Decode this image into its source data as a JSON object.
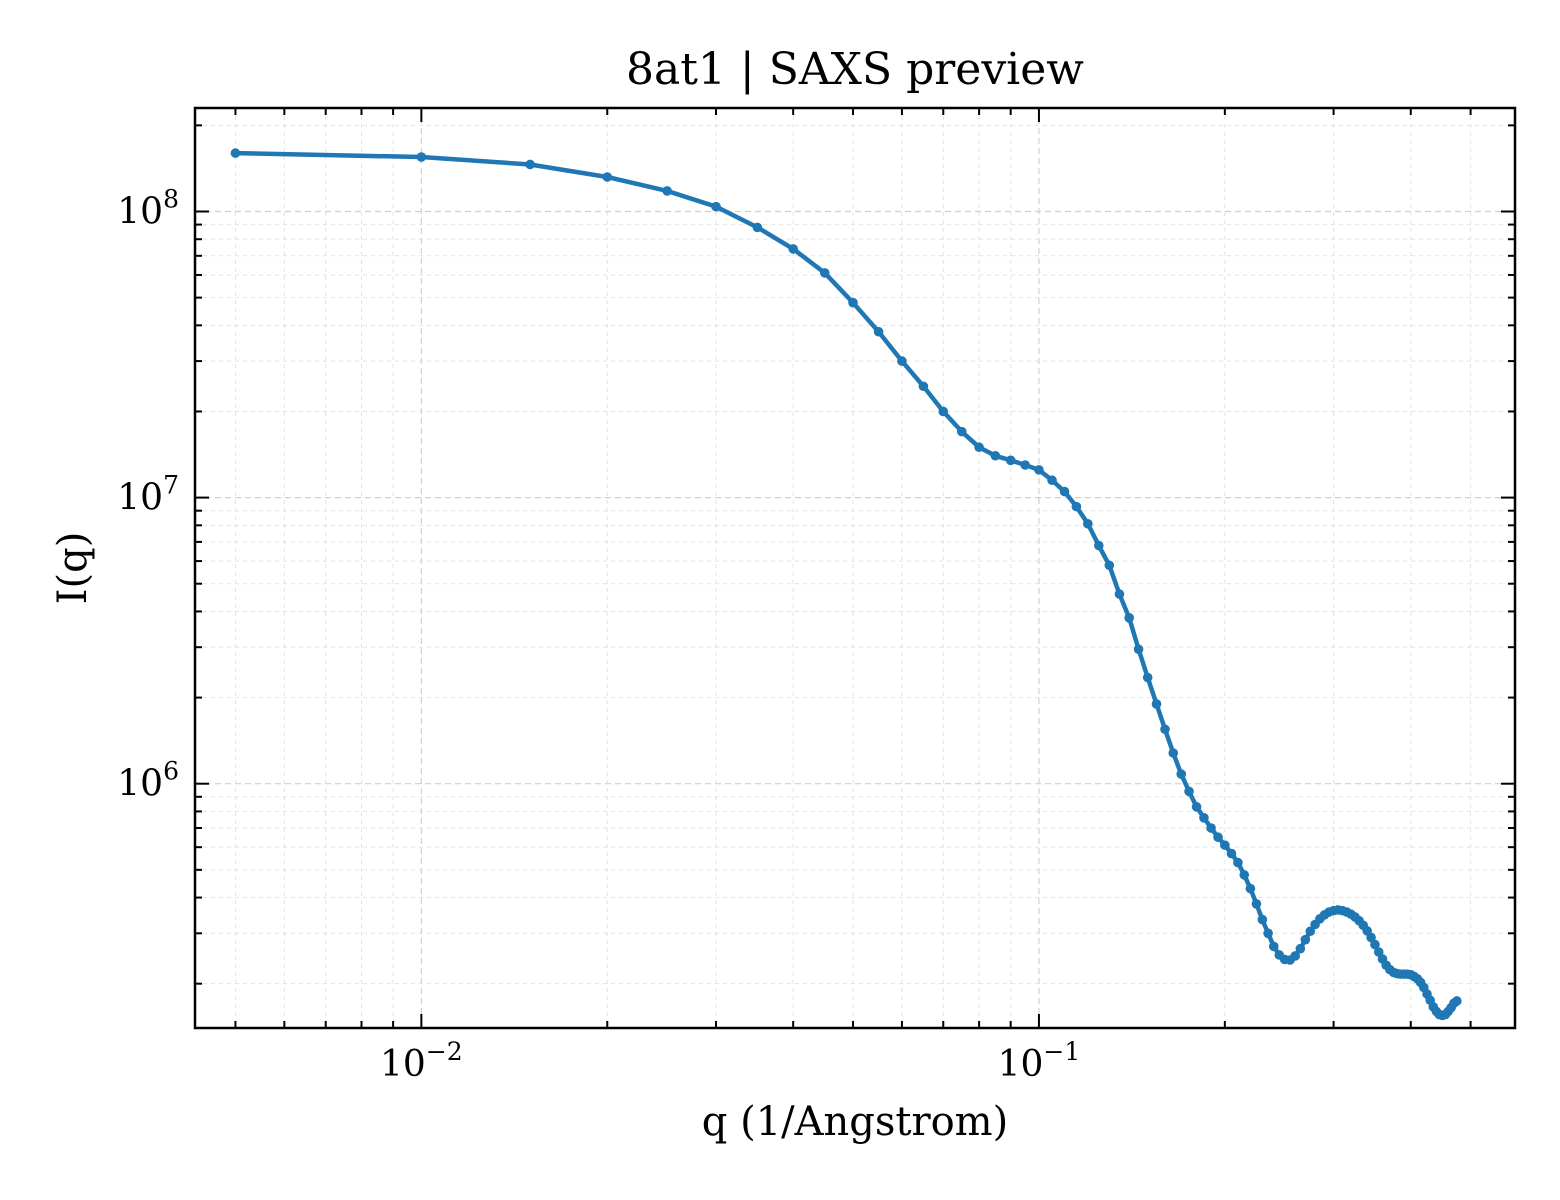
{
  "chart_data": {
    "type": "line",
    "title": "8at1 | SAXS preview",
    "xlabel": "q (1/Angstrom)",
    "ylabel": "I(q)",
    "xscale": "log",
    "yscale": "log",
    "xlim": [
      0.0043,
      0.59
    ],
    "ylim": [
      140000,
      230000000
    ],
    "grid": true,
    "x_ticks": [
      {
        "base": "10",
        "exp": "−2",
        "value": 0.01
      },
      {
        "base": "10",
        "exp": "−1",
        "value": 0.1
      }
    ],
    "y_ticks": [
      {
        "base": "10",
        "exp": "6",
        "value": 1000000
      },
      {
        "base": "10",
        "exp": "7",
        "value": 10000000
      },
      {
        "base": "10",
        "exp": "8",
        "value": 100000000
      }
    ],
    "series": [
      {
        "color": "#1f77b4",
        "marker": "circle",
        "points": [
          [
            0.005,
            160000000
          ],
          [
            0.01,
            155000000
          ],
          [
            0.015,
            146000000
          ],
          [
            0.02,
            132000000
          ],
          [
            0.025,
            118000000
          ],
          [
            0.03,
            104000000
          ],
          [
            0.035,
            88000000
          ],
          [
            0.04,
            74000000
          ],
          [
            0.045,
            61000000
          ],
          [
            0.05,
            48000000
          ],
          [
            0.055,
            38000000
          ],
          [
            0.06,
            30000000
          ],
          [
            0.065,
            24500000
          ],
          [
            0.07,
            20000000
          ],
          [
            0.075,
            17000000
          ],
          [
            0.08,
            15000000
          ],
          [
            0.085,
            14000000
          ],
          [
            0.09,
            13500000
          ],
          [
            0.095,
            13000000
          ],
          [
            0.1,
            12500000
          ],
          [
            0.105,
            11500000
          ],
          [
            0.11,
            10500000
          ],
          [
            0.115,
            9300000
          ],
          [
            0.12,
            8100000
          ],
          [
            0.125,
            6800000
          ],
          [
            0.13,
            5800000
          ],
          [
            0.135,
            4600000
          ],
          [
            0.14,
            3800000
          ],
          [
            0.145,
            2950000
          ],
          [
            0.15,
            2350000
          ],
          [
            0.155,
            1900000
          ],
          [
            0.16,
            1550000
          ],
          [
            0.165,
            1280000
          ],
          [
            0.17,
            1080000
          ],
          [
            0.175,
            940000
          ],
          [
            0.18,
            830000
          ],
          [
            0.185,
            760000
          ],
          [
            0.19,
            700000
          ],
          [
            0.195,
            650000
          ],
          [
            0.2,
            610000
          ],
          [
            0.205,
            570000
          ],
          [
            0.21,
            530000
          ],
          [
            0.215,
            480000
          ],
          [
            0.22,
            430000
          ],
          [
            0.225,
            380000
          ],
          [
            0.23,
            335000
          ],
          [
            0.235,
            300000
          ],
          [
            0.24,
            270000
          ],
          [
            0.245,
            252000
          ],
          [
            0.25,
            243000
          ],
          [
            0.255,
            242000
          ],
          [
            0.26,
            250000
          ],
          [
            0.265,
            265000
          ],
          [
            0.27,
            285000
          ],
          [
            0.275,
            305000
          ],
          [
            0.28,
            322000
          ],
          [
            0.285,
            337000
          ],
          [
            0.29,
            348000
          ],
          [
            0.295,
            356000
          ],
          [
            0.3,
            360000
          ],
          [
            0.305,
            362000
          ],
          [
            0.31,
            360000
          ],
          [
            0.315,
            356000
          ],
          [
            0.32,
            350000
          ],
          [
            0.325,
            342000
          ],
          [
            0.33,
            332000
          ],
          [
            0.335,
            320000
          ],
          [
            0.34,
            306000
          ],
          [
            0.345,
            290000
          ],
          [
            0.35,
            274000
          ],
          [
            0.355,
            258000
          ],
          [
            0.36,
            244000
          ],
          [
            0.365,
            232000
          ],
          [
            0.37,
            224000
          ],
          [
            0.375,
            219000
          ],
          [
            0.38,
            217000
          ],
          [
            0.385,
            216000
          ],
          [
            0.39,
            216000
          ],
          [
            0.395,
            216000
          ],
          [
            0.4,
            215000
          ],
          [
            0.405,
            212000
          ],
          [
            0.41,
            208000
          ],
          [
            0.415,
            202000
          ],
          [
            0.42,
            194000
          ],
          [
            0.425,
            184000
          ],
          [
            0.43,
            175000
          ],
          [
            0.435,
            166000
          ],
          [
            0.44,
            160000
          ],
          [
            0.445,
            156000
          ],
          [
            0.45,
            155000
          ],
          [
            0.455,
            156000
          ],
          [
            0.46,
            160000
          ],
          [
            0.465,
            165000
          ],
          [
            0.47,
            171000
          ],
          [
            0.475,
            174000
          ]
        ]
      }
    ]
  }
}
